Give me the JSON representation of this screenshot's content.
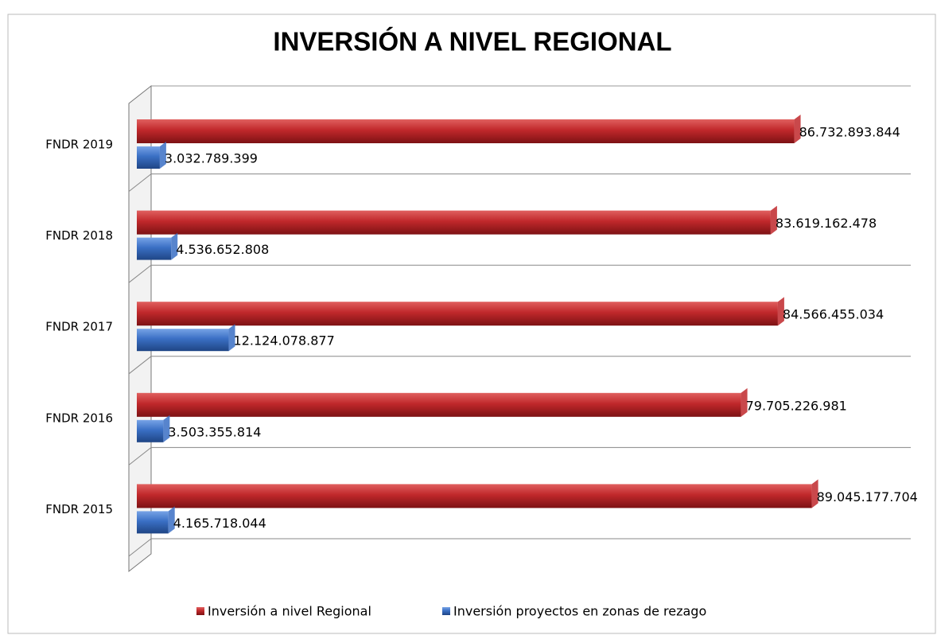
{
  "chart_data": {
    "type": "bar",
    "orientation": "horizontal",
    "title": "INVERSIÓN A NIVEL REGIONAL",
    "categories": [
      "FNDR 2019",
      "FNDR 2018",
      "FNDR 2017",
      "FNDR 2016",
      "FNDR 2015"
    ],
    "xlim": [
      0,
      100000000000
    ],
    "legend": "bottom",
    "series": [
      {
        "name": "Inversión a nivel Regional",
        "color": "#c0282b",
        "values": [
          86732893844,
          83619162478,
          84566455034,
          79705226981,
          89045177704
        ],
        "value_labels": [
          "86.732.893.844",
          "83.619.162.478",
          "84.566.455.034",
          "79.705.226.981",
          "89.045.177.704"
        ]
      },
      {
        "name": "Inversión proyectos en zonas de rezago",
        "color": "#3a6fc4",
        "values": [
          3032789399,
          4536652808,
          12124078877,
          3503355814,
          4165718044
        ],
        "value_labels": [
          "3.032.789.399",
          "4.536.652.808",
          "12.124.078.877",
          "3.503.355.814",
          "4.165.718.044"
        ]
      }
    ]
  }
}
